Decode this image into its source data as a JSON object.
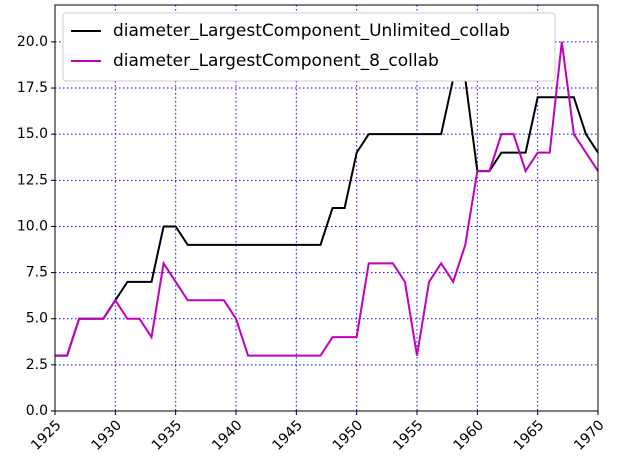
{
  "chart_data": {
    "type": "line",
    "x": [
      1925,
      1926,
      1927,
      1928,
      1929,
      1930,
      1931,
      1932,
      1933,
      1934,
      1935,
      1936,
      1937,
      1938,
      1939,
      1940,
      1941,
      1942,
      1943,
      1944,
      1945,
      1946,
      1947,
      1948,
      1949,
      1950,
      1951,
      1952,
      1953,
      1954,
      1955,
      1956,
      1957,
      1958,
      1959,
      1960,
      1961,
      1962,
      1963,
      1964,
      1965,
      1966,
      1967,
      1968,
      1969,
      1970
    ],
    "series": [
      {
        "name": "diameter_LargestComponent_Unlimited_collab",
        "color": "#000000",
        "values": [
          3,
          3,
          5,
          5,
          5,
          6,
          7,
          7,
          7,
          10,
          10,
          9,
          9,
          9,
          9,
          9,
          9,
          9,
          9,
          9,
          9,
          9,
          9,
          11,
          11,
          14,
          15,
          15,
          15,
          15,
          15,
          15,
          15,
          18,
          18,
          13,
          13,
          14,
          14,
          14,
          17,
          17,
          17,
          17,
          15,
          14
        ]
      },
      {
        "name": "diameter_LargestComponent_8_collab",
        "color": "#bf00bf",
        "values": [
          3,
          3,
          5,
          5,
          5,
          6,
          5,
          5,
          4,
          8,
          7,
          6,
          6,
          6,
          6,
          5,
          3,
          3,
          3,
          3,
          3,
          3,
          3,
          4,
          4,
          4,
          8,
          8,
          8,
          7,
          3,
          7,
          8,
          7,
          9,
          13,
          13,
          15,
          15,
          13,
          14,
          14,
          20,
          15,
          14,
          13
        ]
      }
    ],
    "xlim": [
      1925,
      1970
    ],
    "xticks": [
      1925,
      1930,
      1935,
      1940,
      1945,
      1950,
      1955,
      1960,
      1965,
      1970
    ],
    "ylim": [
      0,
      22
    ],
    "yticks": [
      {
        "value": 0,
        "label": "0.0"
      },
      2.5,
      {
        "value": 5,
        "label": "5.0"
      },
      7.5,
      {
        "value": 10,
        "label": "10.0"
      },
      12.5,
      {
        "value": 15,
        "label": "15.0"
      },
      17.5,
      {
        "value": 20,
        "label": "20.0"
      }
    ],
    "grid": true,
    "legend": "upper left"
  }
}
